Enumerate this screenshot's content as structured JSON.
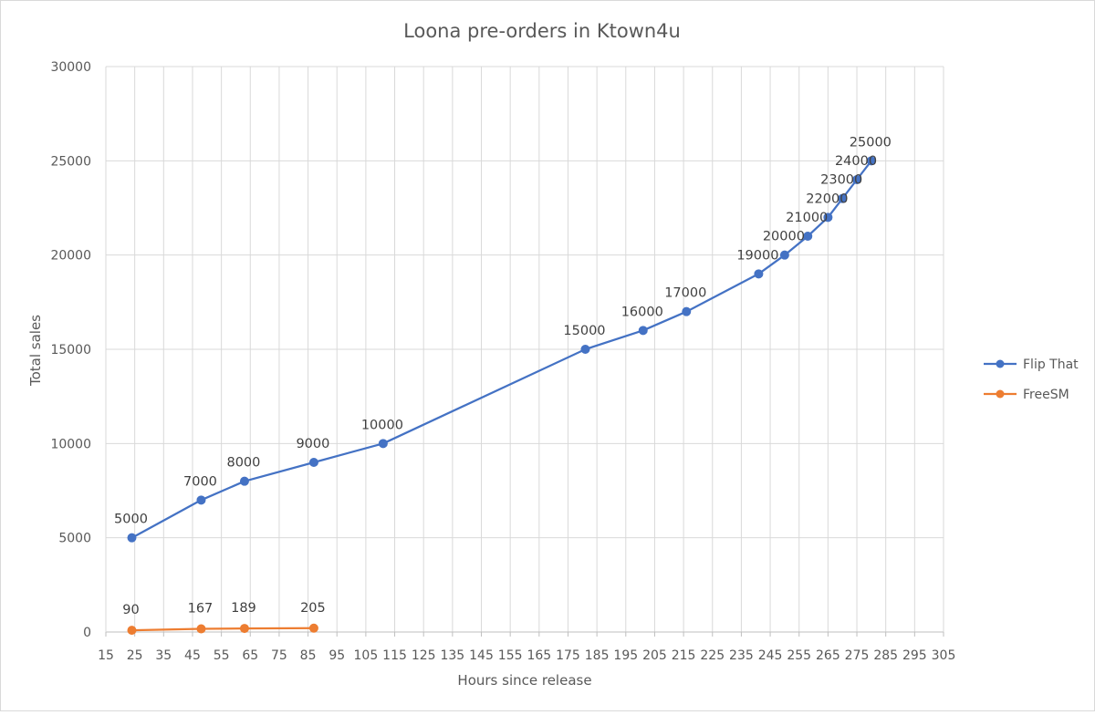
{
  "chart_data": {
    "type": "scatter",
    "title": "Loona pre-orders in Ktown4u",
    "xlabel": "Hours since release",
    "ylabel": "Total sales",
    "xlim": [
      15,
      305
    ],
    "ylim": [
      0,
      30000
    ],
    "x_ticks": [
      "15",
      "25",
      "35",
      "45",
      "55",
      "65",
      "75",
      "85",
      "95",
      "105",
      "115",
      "125",
      "135",
      "145",
      "155",
      "165",
      "175",
      "185",
      "195",
      "205",
      "215",
      "225",
      "235",
      "245",
      "255",
      "265",
      "275",
      "285",
      "295",
      "305"
    ],
    "y_ticks": [
      "0",
      "5000",
      "10000",
      "15000",
      "20000",
      "25000",
      "30000"
    ],
    "grid": true,
    "legend_position": "right",
    "series": [
      {
        "name": "Flip That",
        "color": "#4472C4",
        "x": [
          24,
          48,
          63,
          87,
          111,
          181,
          201,
          216,
          241,
          250,
          258,
          265,
          270,
          275,
          280
        ],
        "y": [
          5000,
          7000,
          8000,
          9000,
          10000,
          15000,
          16000,
          17000,
          19000,
          20000,
          21000,
          22000,
          23000,
          24000,
          25000
        ],
        "labels": [
          "5000",
          "7000",
          "8000",
          "9000",
          "10000",
          "15000",
          "16000",
          "17000",
          "19000",
          "20000",
          "21000",
          "22000",
          "23000",
          "24000",
          "25000"
        ]
      },
      {
        "name": "FreeSM",
        "color": "#ED7D31",
        "x": [
          24,
          48,
          63,
          87
        ],
        "y": [
          90,
          167,
          189,
          205
        ],
        "labels": [
          "90",
          "167",
          "189",
          "205"
        ]
      }
    ]
  }
}
